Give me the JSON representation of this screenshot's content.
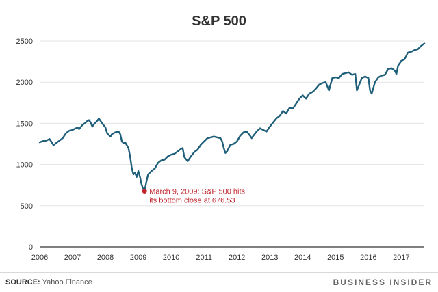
{
  "chart_data": {
    "type": "line",
    "title": "S&P 500",
    "y_ticks": [
      "2500",
      "2000",
      "1500",
      "1000",
      "500",
      "0"
    ],
    "x_ticks": [
      "2006",
      "2007",
      "2008",
      "2009",
      "2010",
      "2011",
      "2012",
      "2013",
      "2014",
      "2015",
      "2016",
      "2017"
    ],
    "ylim": [
      0,
      2500
    ],
    "xlim": [
      2006.0,
      2017.7
    ],
    "grid": true,
    "color": "#1f5f7a",
    "series": [
      {
        "x": [
          2006.0,
          2006.1,
          2006.2,
          2006.3,
          2006.35,
          2006.42,
          2006.5,
          2006.6,
          2006.7,
          2006.8,
          2006.9,
          2007.0,
          2007.1,
          2007.15,
          2007.2,
          2007.3,
          2007.4,
          2007.45,
          2007.5,
          2007.55,
          2007.6,
          2007.65,
          2007.75,
          2007.8,
          2007.9,
          2008.0,
          2008.05,
          2008.15,
          2008.2,
          2008.3,
          2008.4,
          2008.45,
          2008.5,
          2008.55,
          2008.6,
          2008.7,
          2008.75,
          2008.8,
          2008.85,
          2008.9,
          2008.95,
          2009.0,
          2009.05,
          2009.1,
          2009.15,
          2009.19,
          2009.25,
          2009.3,
          2009.4,
          2009.5,
          2009.6,
          2009.7,
          2009.8,
          2009.9,
          2010.0,
          2010.1,
          2010.2,
          2010.3,
          2010.35,
          2010.4,
          2010.5,
          2010.6,
          2010.7,
          2010.8,
          2010.9,
          2011.0,
          2011.1,
          2011.2,
          2011.3,
          2011.4,
          2011.5,
          2011.55,
          2011.6,
          2011.65,
          2011.7,
          2011.8,
          2011.9,
          2012.0,
          2012.1,
          2012.2,
          2012.3,
          2012.4,
          2012.45,
          2012.5,
          2012.6,
          2012.7,
          2012.8,
          2012.9,
          2013.0,
          2013.1,
          2013.2,
          2013.3,
          2013.4,
          2013.5,
          2013.6,
          2013.7,
          2013.8,
          2013.9,
          2014.0,
          2014.1,
          2014.2,
          2014.3,
          2014.4,
          2014.5,
          2014.6,
          2014.7,
          2014.8,
          2014.9,
          2015.0,
          2015.1,
          2015.2,
          2015.3,
          2015.4,
          2015.5,
          2015.6,
          2015.65,
          2015.7,
          2015.8,
          2015.9,
          2016.0,
          2016.05,
          2016.1,
          2016.2,
          2016.3,
          2016.4,
          2016.5,
          2016.6,
          2016.7,
          2016.8,
          2016.85,
          2016.9,
          2017.0,
          2017.1,
          2017.2,
          2017.3,
          2017.4,
          2017.5,
          2017.6,
          2017.7
        ],
        "y": [
          1270,
          1285,
          1290,
          1310,
          1280,
          1235,
          1260,
          1290,
          1320,
          1380,
          1410,
          1420,
          1440,
          1450,
          1430,
          1480,
          1510,
          1530,
          1540,
          1510,
          1460,
          1490,
          1530,
          1560,
          1500,
          1450,
          1380,
          1340,
          1370,
          1390,
          1400,
          1370,
          1280,
          1260,
          1270,
          1200,
          1100,
          960,
          880,
          900,
          850,
          920,
          850,
          760,
          700,
          676.53,
          800,
          880,
          920,
          950,
          1020,
          1050,
          1060,
          1100,
          1120,
          1130,
          1160,
          1190,
          1200,
          1090,
          1040,
          1100,
          1150,
          1180,
          1240,
          1280,
          1320,
          1330,
          1340,
          1330,
          1320,
          1280,
          1200,
          1140,
          1160,
          1240,
          1250,
          1280,
          1350,
          1390,
          1400,
          1350,
          1320,
          1350,
          1400,
          1440,
          1420,
          1400,
          1460,
          1510,
          1560,
          1590,
          1650,
          1620,
          1690,
          1680,
          1740,
          1800,
          1840,
          1800,
          1860,
          1880,
          1920,
          1970,
          1990,
          2000,
          1900,
          2050,
          2060,
          2050,
          2100,
          2110,
          2120,
          2090,
          2100,
          1900,
          1950,
          2050,
          2070,
          2050,
          1900,
          1860,
          2000,
          2060,
          2080,
          2090,
          2160,
          2170,
          2140,
          2100,
          2200,
          2260,
          2280,
          2360,
          2370,
          2390,
          2400,
          2440,
          2470
        ]
      }
    ],
    "annotation": {
      "x": 2009.19,
      "y": 676.53,
      "line1": "March 9, 2009: S&P 500 hits",
      "line2": "its bottom close at 676.53",
      "color": "#c0262d"
    }
  },
  "footer": {
    "source_label": "SOURCE:",
    "source_text": " Yahoo Finance",
    "brand": "BUSINESS INSIDER"
  }
}
